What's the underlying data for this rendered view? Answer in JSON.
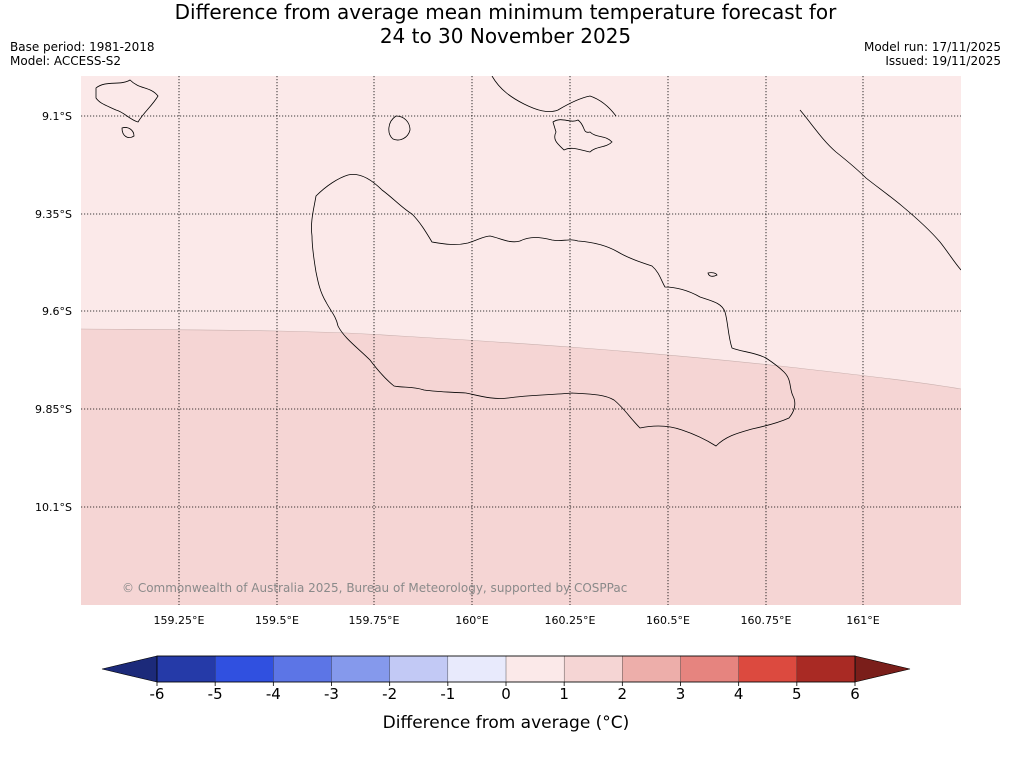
{
  "title": {
    "line1": "Difference from average mean minimum temperature forecast for",
    "line2": "24 to 30 November 2025"
  },
  "meta": {
    "base_period": "Base period: 1981-2018",
    "model": "Model: ACCESS-S2",
    "model_run": "Model run: 17/11/2025",
    "issued": "Issued: 19/11/2025"
  },
  "map": {
    "lat_labels": [
      "9.1°S",
      "9.35°S",
      "9.6°S",
      "9.85°S",
      "10.1°S"
    ],
    "lon_labels": [
      "159.25°E",
      "159.5°E",
      "159.75°E",
      "160°E",
      "160.25°E",
      "160.5°E",
      "160.75°E",
      "161°E"
    ],
    "copyright": "© Commonwealth of Australia 2025, Bureau of Meteorology, supported by COSPPac",
    "region_colors": {
      "class_0_1": "#fbe9e9",
      "class_1_2": "#f5d5d4"
    }
  },
  "colorbar": {
    "labels": [
      "-6",
      "-5",
      "-4",
      "-3",
      "-2",
      "-1",
      "0",
      "1",
      "2",
      "3",
      "4",
      "5",
      "6"
    ],
    "colors": [
      "#253aa8",
      "#3050e0",
      "#5c75e6",
      "#8599ec",
      "#c2c9f5",
      "#e8eafc",
      "#fbe9e9",
      "#f5d5d4",
      "#edaeaa",
      "#e6847f",
      "#dc4a3f",
      "#a92a24"
    ],
    "low_extend_color": "#1c2a7a",
    "high_extend_color": "#7a1e1a",
    "title": "Difference from average (°C)"
  }
}
